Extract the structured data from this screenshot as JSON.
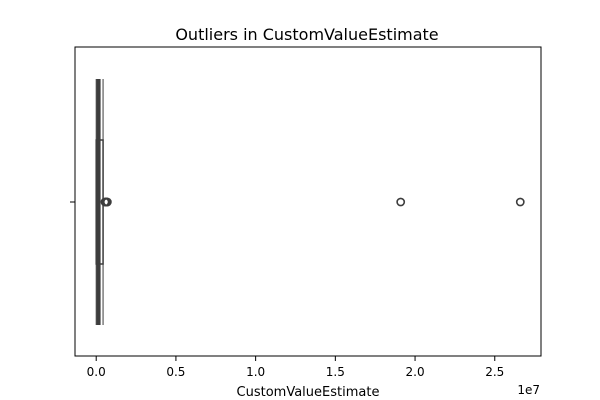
{
  "chart_data": {
    "type": "box",
    "orientation": "horizontal",
    "title": "Outliers in CustomValueEstimate",
    "xlabel": "CustomValueEstimate",
    "ylabel": "",
    "xlim": [
      -1330000,
      27900000
    ],
    "x_scale_offset": "1e7",
    "x_ticks": [
      0,
      5000000,
      10000000,
      15000000,
      20000000,
      25000000
    ],
    "x_tick_labels": [
      "0.0",
      "0.5",
      "1.0",
      "1.5",
      "2.0",
      "2.5"
    ],
    "y_ticks": [
      ""
    ],
    "box": {
      "q1": 0,
      "median": 150000,
      "q3": 430000,
      "whisker_low": 0,
      "whisker_high": 430000
    },
    "outliers": [
      550000,
      580000,
      600000,
      620000,
      650000,
      680000,
      700000,
      19100000,
      26600000
    ],
    "colors": {
      "axis": "#000000",
      "box_edge": "#3d3d3d",
      "box_fill": "#ffffff",
      "median": "#3d3d3d",
      "outlier_edge": "#3d3d3d"
    },
    "grid": false,
    "legend": "none"
  }
}
